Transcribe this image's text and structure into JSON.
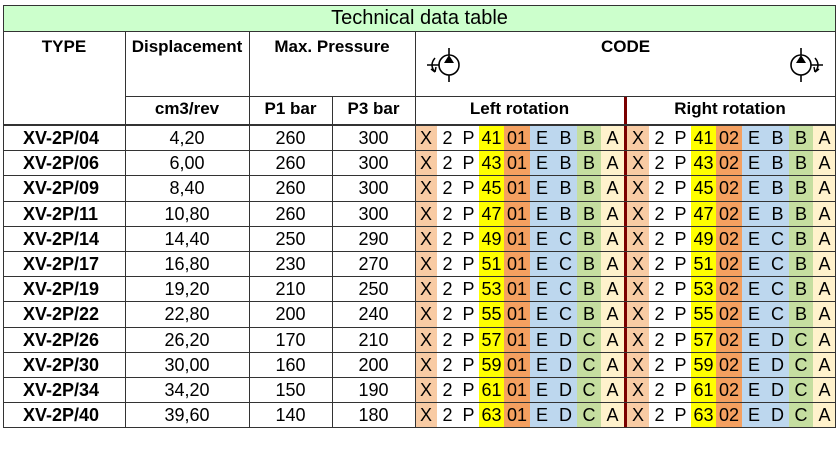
{
  "title": "Technical data table",
  "headers": {
    "type": "TYPE",
    "displacement": "Displacement",
    "displacement_unit": "cm3/rev",
    "max_pressure": "Max. Pressure",
    "p1": "P1 bar",
    "p3": "P3 bar",
    "code": "CODE",
    "left_rotation": "Left rotation",
    "right_rotation": "Right rotation"
  },
  "icons": {
    "left": "left-rotation-pump-icon",
    "right": "right-rotation-pump-icon"
  },
  "rows": [
    {
      "type": "XV-2P/04",
      "disp": "4,20",
      "p1": "260",
      "p3": "300",
      "size": "41",
      "c1": "E",
      "c2": "B",
      "c3": "B",
      "c4": "A"
    },
    {
      "type": "XV-2P/06",
      "disp": "6,00",
      "p1": "260",
      "p3": "300",
      "size": "43",
      "c1": "E",
      "c2": "B",
      "c3": "B",
      "c4": "A"
    },
    {
      "type": "XV-2P/09",
      "disp": "8,40",
      "p1": "260",
      "p3": "300",
      "size": "45",
      "c1": "E",
      "c2": "B",
      "c3": "B",
      "c4": "A"
    },
    {
      "type": "XV-2P/11",
      "disp": "10,80",
      "p1": "260",
      "p3": "300",
      "size": "47",
      "c1": "E",
      "c2": "B",
      "c3": "B",
      "c4": "A"
    },
    {
      "type": "XV-2P/14",
      "disp": "14,40",
      "p1": "250",
      "p3": "290",
      "size": "49",
      "c1": "E",
      "c2": "C",
      "c3": "B",
      "c4": "A"
    },
    {
      "type": "XV-2P/17",
      "disp": "16,80",
      "p1": "230",
      "p3": "270",
      "size": "51",
      "c1": "E",
      "c2": "C",
      "c3": "B",
      "c4": "A"
    },
    {
      "type": "XV-2P/19",
      "disp": "19,20",
      "p1": "210",
      "p3": "250",
      "size": "53",
      "c1": "E",
      "c2": "C",
      "c3": "B",
      "c4": "A"
    },
    {
      "type": "XV-2P/22",
      "disp": "22,80",
      "p1": "200",
      "p3": "240",
      "size": "55",
      "c1": "E",
      "c2": "C",
      "c3": "B",
      "c4": "A"
    },
    {
      "type": "XV-2P/26",
      "disp": "26,20",
      "p1": "170",
      "p3": "210",
      "size": "57",
      "c1": "E",
      "c2": "D",
      "c3": "C",
      "c4": "A"
    },
    {
      "type": "XV-2P/30",
      "disp": "30,00",
      "p1": "160",
      "p3": "200",
      "size": "59",
      "c1": "E",
      "c2": "D",
      "c3": "C",
      "c4": "A"
    },
    {
      "type": "XV-2P/34",
      "disp": "34,20",
      "p1": "150",
      "p3": "190",
      "size": "61",
      "c1": "E",
      "c2": "D",
      "c3": "C",
      "c4": "A"
    },
    {
      "type": "XV-2P/40",
      "disp": "39,60",
      "p1": "140",
      "p3": "180",
      "size": "63",
      "c1": "E",
      "c2": "D",
      "c3": "C",
      "c4": "A"
    }
  ],
  "code_prefix": [
    "X",
    "2",
    "P"
  ],
  "rotation_codes": {
    "left": "01",
    "right": "02"
  }
}
